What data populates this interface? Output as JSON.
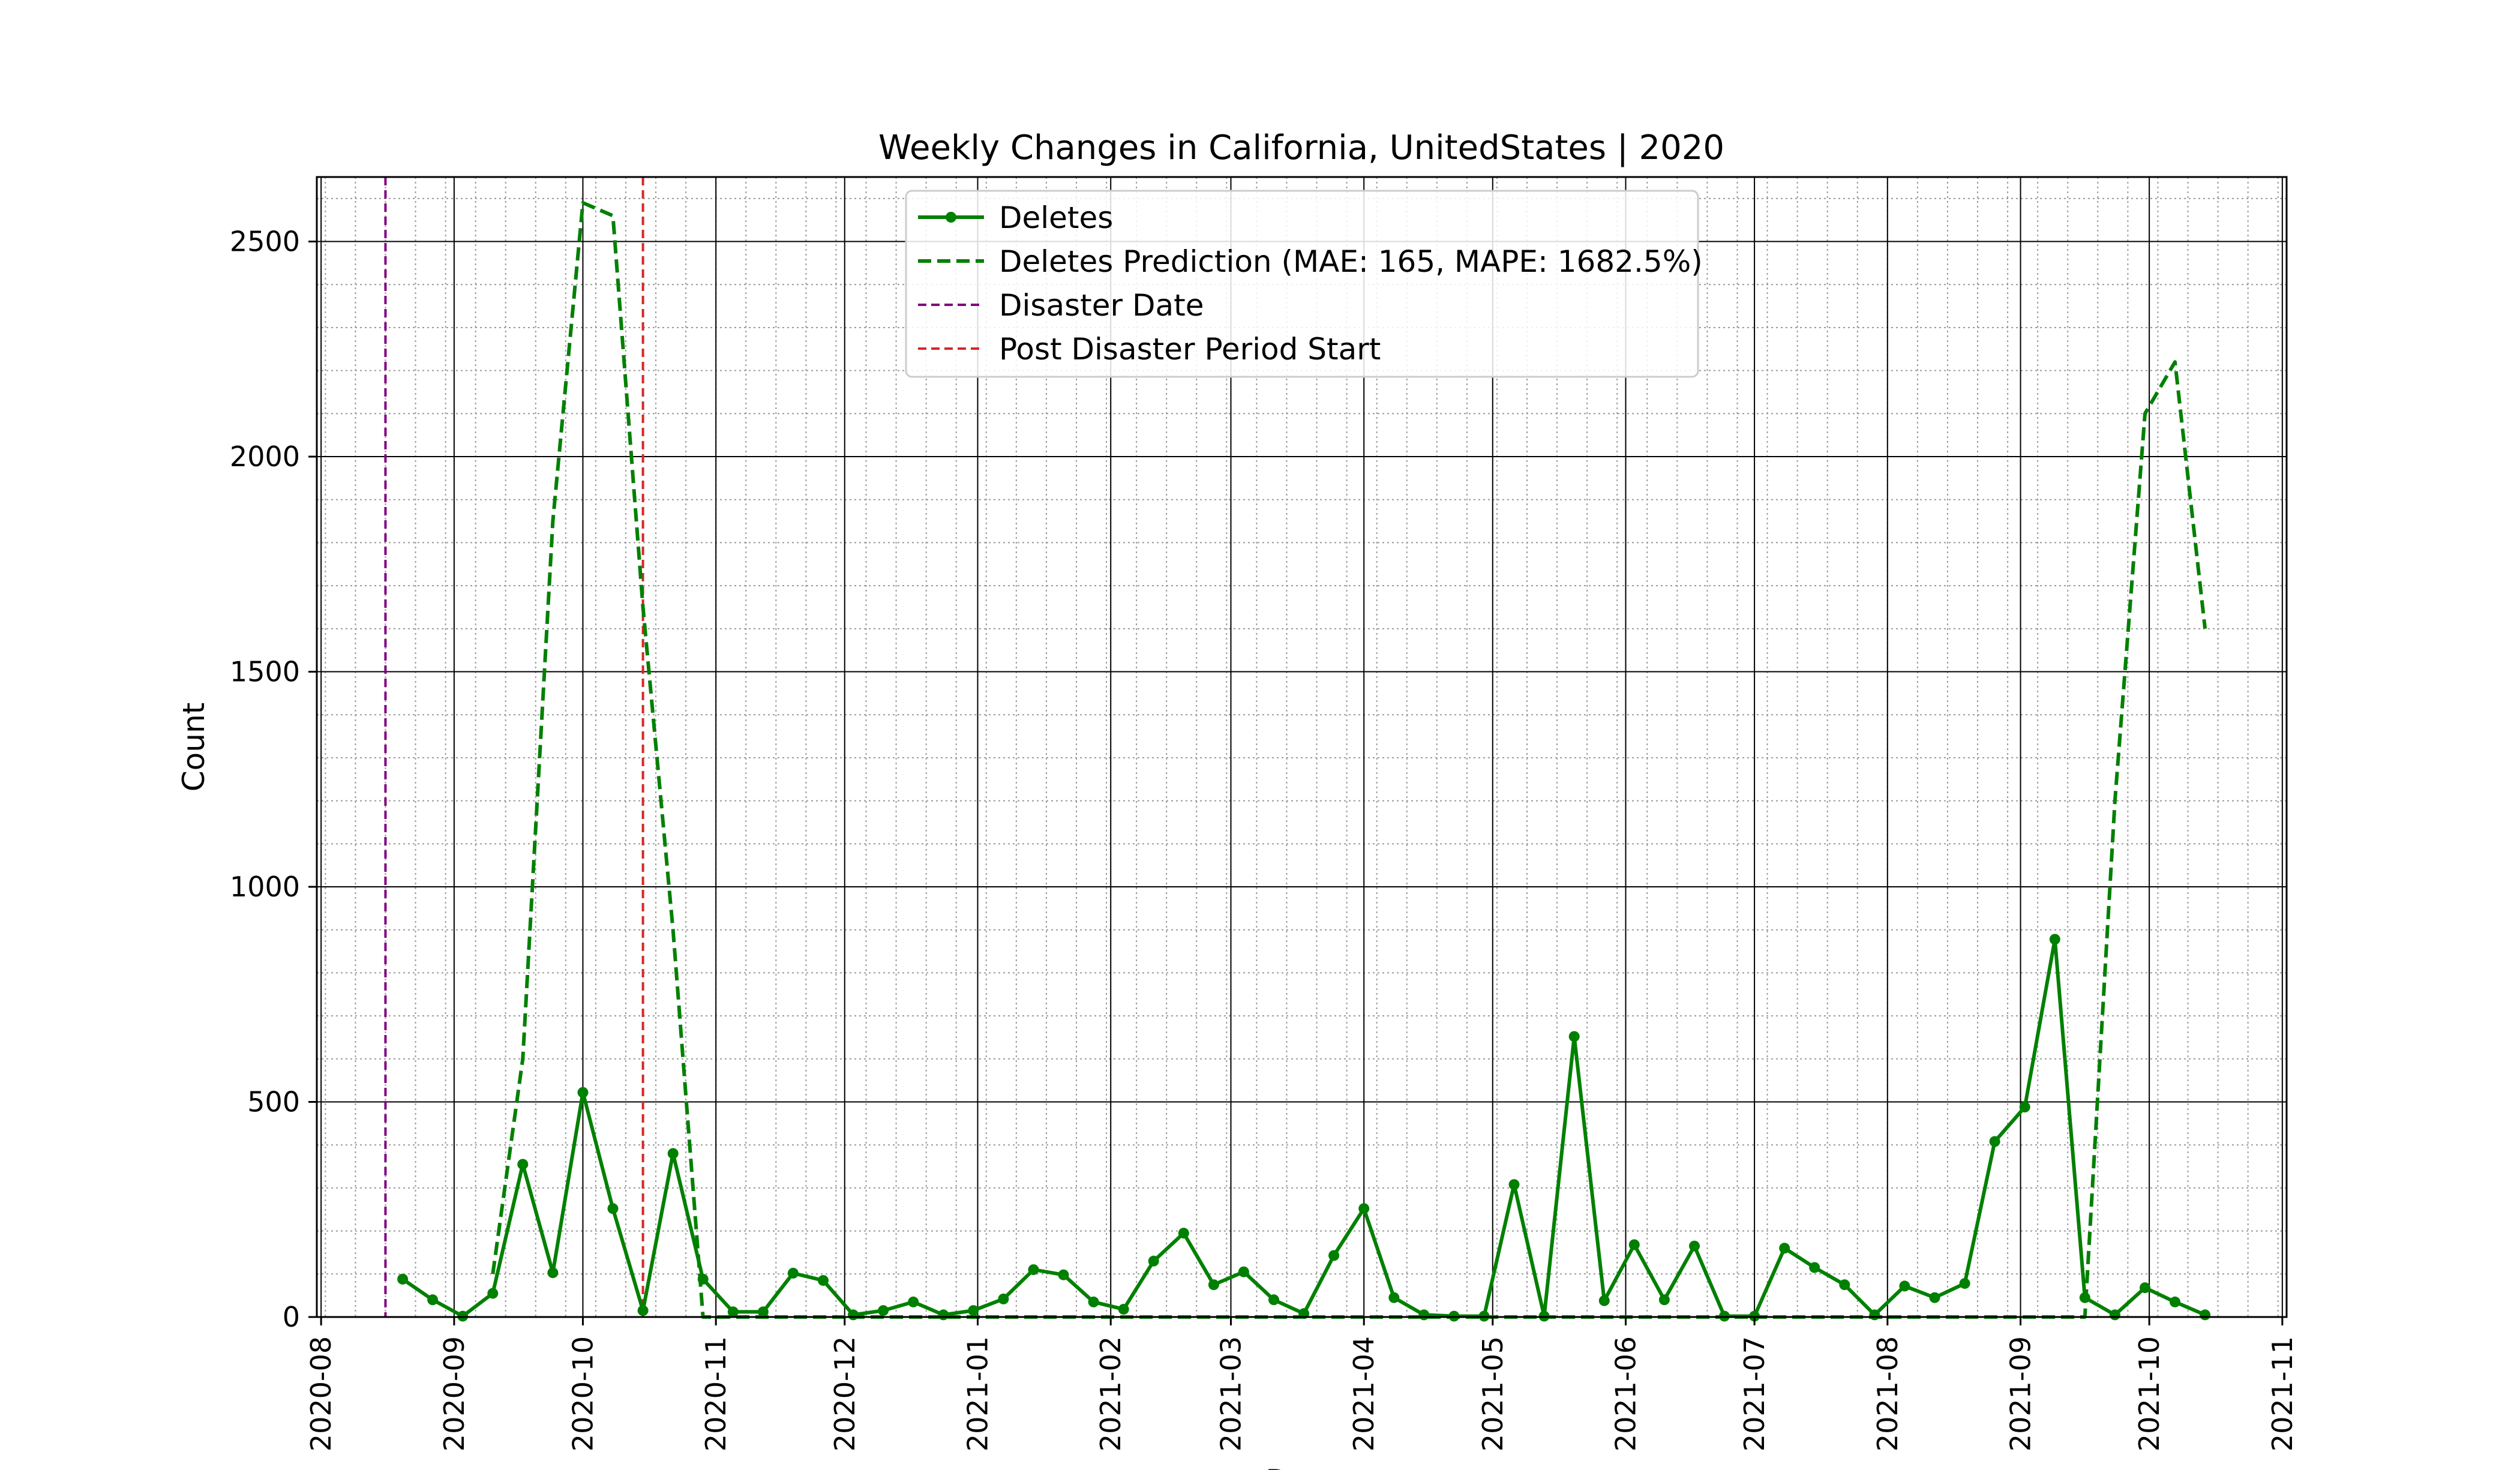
{
  "chart_data": {
    "type": "line",
    "title": "Weekly Changes in California, UnitedStates | 2020",
    "xlabel": "Date",
    "ylabel": "Count",
    "xlim": [
      "2020-07-31",
      "2021-11-02"
    ],
    "ylim": [
      0,
      2650
    ],
    "x_ticks": [
      "2020-08",
      "2020-09",
      "2020-10",
      "2020-11",
      "2020-12",
      "2021-01",
      "2021-02",
      "2021-03",
      "2021-04",
      "2021-05",
      "2021-06",
      "2021-07",
      "2021-08",
      "2021-09",
      "2021-10",
      "2021-11"
    ],
    "y_ticks": [
      0,
      500,
      1000,
      1500,
      2000,
      2500
    ],
    "grid": "major and minor",
    "legend_position": "top-center",
    "colors": {
      "deletes": "#008000",
      "prediction": "#008000",
      "disaster": "#800080",
      "post_disaster": "#d62728",
      "grid_major": "#000000",
      "grid_minor": "#9a9a9a"
    },
    "series": [
      {
        "name": "Deletes",
        "style": "solid-marker",
        "x": [
          "2020-08-20",
          "2020-08-27",
          "2020-09-03",
          "2020-09-10",
          "2020-09-17",
          "2020-09-24",
          "2020-10-01",
          "2020-10-08",
          "2020-10-15",
          "2020-10-22",
          "2020-10-29",
          "2020-11-05",
          "2020-11-12",
          "2020-11-19",
          "2020-11-26",
          "2020-12-03",
          "2020-12-10",
          "2020-12-17",
          "2020-12-24",
          "2020-12-31",
          "2021-01-07",
          "2021-01-14",
          "2021-01-21",
          "2021-01-28",
          "2021-02-04",
          "2021-02-11",
          "2021-02-18",
          "2021-02-25",
          "2021-03-04",
          "2021-03-11",
          "2021-03-18",
          "2021-03-25",
          "2021-04-01",
          "2021-04-08",
          "2021-04-15",
          "2021-04-22",
          "2021-04-29",
          "2021-05-06",
          "2021-05-13",
          "2021-05-20",
          "2021-05-27",
          "2021-06-03",
          "2021-06-10",
          "2021-06-17",
          "2021-06-24",
          "2021-07-01",
          "2021-07-08",
          "2021-07-15",
          "2021-07-22",
          "2021-07-29",
          "2021-08-05",
          "2021-08-12",
          "2021-08-19",
          "2021-08-26",
          "2021-09-02",
          "2021-09-09",
          "2021-09-16",
          "2021-09-23",
          "2021-09-30",
          "2021-10-07",
          "2021-10-14"
        ],
        "values": [
          88,
          40,
          2,
          55,
          355,
          103,
          522,
          252,
          15,
          380,
          88,
          12,
          12,
          102,
          85,
          5,
          15,
          35,
          5,
          15,
          42,
          110,
          98,
          35,
          18,
          130,
          195,
          75,
          105,
          40,
          8,
          143,
          252,
          45,
          5,
          2,
          2,
          308,
          2,
          652,
          38,
          168,
          40,
          165,
          2,
          2,
          160,
          115,
          75,
          5,
          72,
          45,
          78,
          408,
          488,
          878,
          45,
          5,
          68,
          35,
          5
        ]
      },
      {
        "name": "Deletes Prediction (MAE: 165, MAPE: 1682.5%)",
        "style": "dashed",
        "x": [
          "2020-09-10",
          "2020-09-17",
          "2020-09-24",
          "2020-10-01",
          "2020-10-08",
          "2020-10-15",
          "2020-10-22",
          "2020-10-29",
          "2020-11-05",
          "2020-11-12",
          "2020-11-19",
          "2020-11-26",
          "2020-12-03",
          "2020-12-10",
          "2020-12-17",
          "2020-12-24",
          "2020-12-31",
          "2021-01-07",
          "2021-01-14",
          "2021-01-21",
          "2021-01-28",
          "2021-02-04",
          "2021-02-11",
          "2021-02-18",
          "2021-02-25",
          "2021-03-04",
          "2021-03-11",
          "2021-03-18",
          "2021-03-25",
          "2021-04-01",
          "2021-04-08",
          "2021-04-15",
          "2021-04-22",
          "2021-04-29",
          "2021-05-06",
          "2021-05-13",
          "2021-05-20",
          "2021-05-27",
          "2021-06-03",
          "2021-06-10",
          "2021-06-17",
          "2021-06-24",
          "2021-07-01",
          "2021-07-08",
          "2021-07-15",
          "2021-07-22",
          "2021-07-29",
          "2021-08-05",
          "2021-08-12",
          "2021-08-19",
          "2021-08-26",
          "2021-09-02",
          "2021-09-09",
          "2021-09-16",
          "2021-09-23",
          "2021-09-30",
          "2021-10-07",
          "2021-10-14"
        ],
        "values": [
          100,
          600,
          1850,
          2590,
          2560,
          1650,
          900,
          0,
          0,
          0,
          0,
          0,
          0,
          0,
          0,
          0,
          0,
          0,
          0,
          0,
          0,
          0,
          0,
          0,
          0,
          0,
          0,
          0,
          0,
          0,
          0,
          0,
          0,
          0,
          0,
          0,
          0,
          0,
          0,
          0,
          0,
          0,
          0,
          0,
          0,
          0,
          0,
          0,
          0,
          0,
          0,
          0,
          0,
          0,
          1200,
          2100,
          2220,
          1600
        ]
      }
    ],
    "vertical_lines": [
      {
        "name": "Disaster Date",
        "x": "2020-08-16"
      },
      {
        "name": "Post Disaster Period Start",
        "x": "2020-10-15"
      }
    ]
  }
}
